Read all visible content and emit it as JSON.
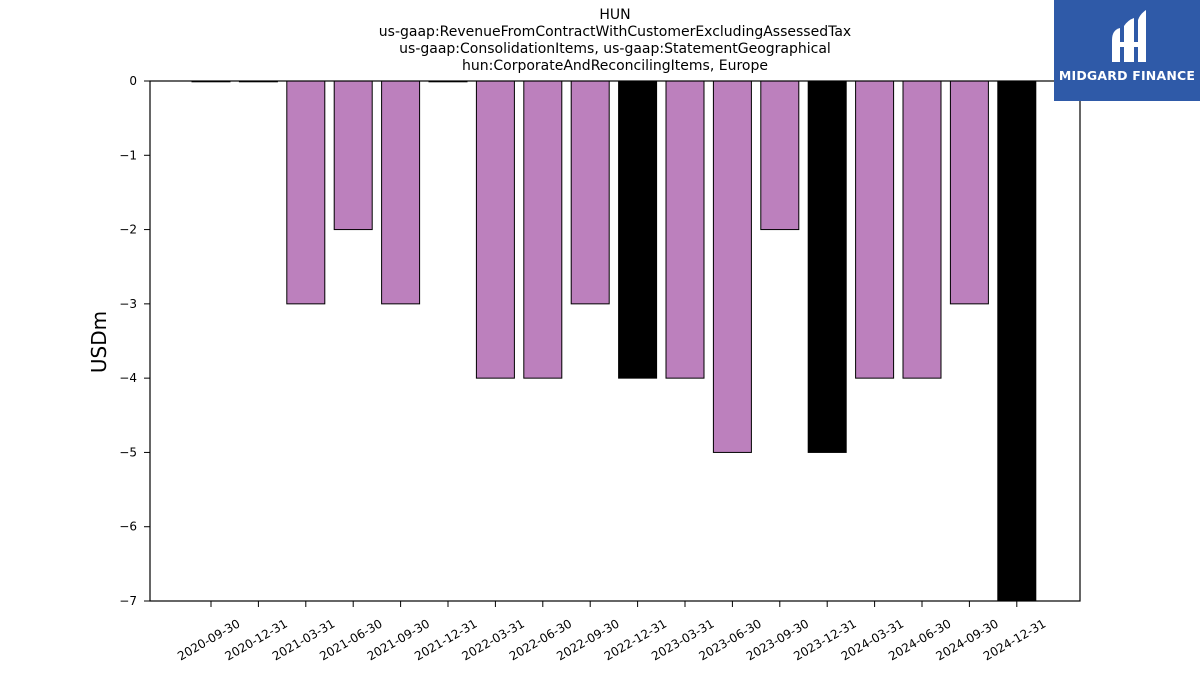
{
  "header": {
    "title_lines": [
      "HUN",
      "us-gaap:RevenueFromContractWithCustomerExcludingAssessedTax",
      "us-gaap:ConsolidationItems, us-gaap:StatementGeographical",
      "hun:CorporateAndReconcilingItems, Europe"
    ]
  },
  "logo": {
    "text": "MIDGARD FINANCE",
    "background": "#2f5aa8"
  },
  "chart_data": {
    "type": "bar",
    "ylabel": "USDm",
    "xlabel": "",
    "ylim": [
      -7,
      0
    ],
    "yticks": [
      0,
      -1,
      -2,
      -3,
      -4,
      -5,
      -6,
      -7
    ],
    "grid": false,
    "legend": "none",
    "categories": [
      "2020-09-30",
      "2020-12-31",
      "2021-03-31",
      "2021-06-30",
      "2021-09-30",
      "2021-12-31",
      "2022-03-31",
      "2022-06-30",
      "2022-09-30",
      "2022-12-31",
      "2023-03-31",
      "2023-06-30",
      "2023-09-30",
      "2023-12-31",
      "2024-03-31",
      "2024-06-30",
      "2024-09-30",
      "2024-12-31"
    ],
    "values": [
      0,
      0,
      -3,
      -2,
      -3,
      0,
      -4,
      -4,
      -3,
      -4,
      -4,
      -5,
      -2,
      -5,
      -4,
      -4,
      -3,
      -7
    ],
    "bar_colors": [
      "#bc80bd",
      "#bc80bd",
      "#bc80bd",
      "#bc80bd",
      "#bc80bd",
      "#bc80bd",
      "#bc80bd",
      "#bc80bd",
      "#bc80bd",
      "#000000",
      "#bc80bd",
      "#bc80bd",
      "#bc80bd",
      "#000000",
      "#bc80bd",
      "#bc80bd",
      "#bc80bd",
      "#000000"
    ]
  }
}
